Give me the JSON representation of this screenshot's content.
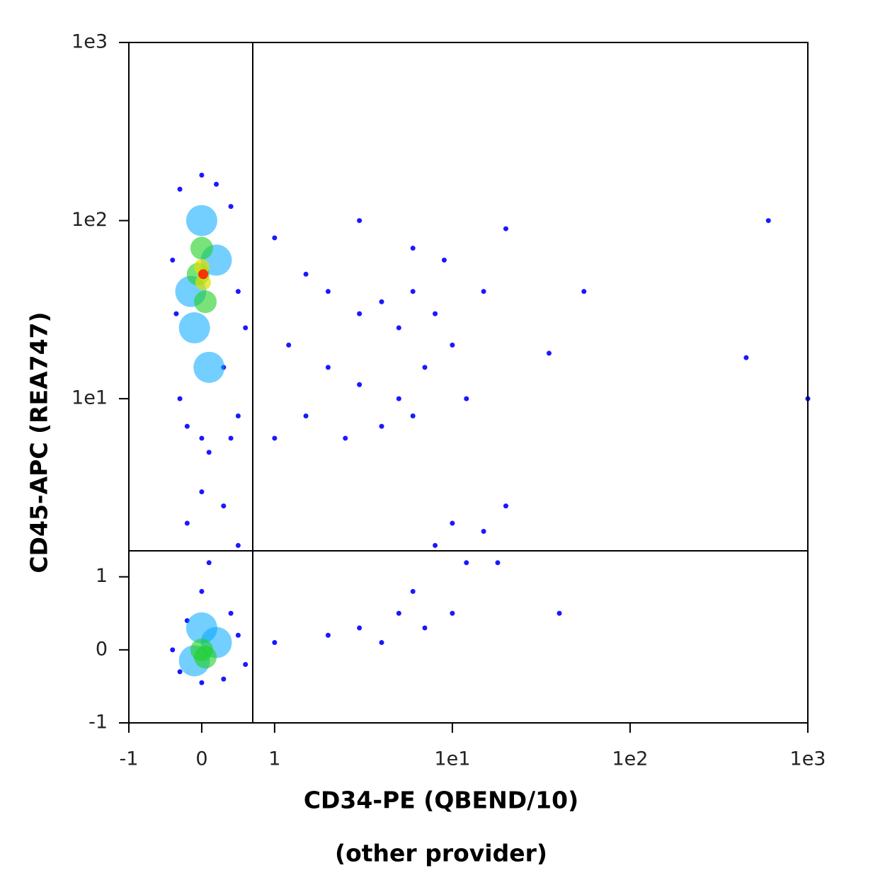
{
  "chart_data": {
    "type": "scatter",
    "xlabel": [
      "CD34-PE (QBEND/10)",
      "(other provider)"
    ],
    "ylabel": "CD45-APC (REA747)",
    "xscale": "biexponential",
    "yscale": "biexponential",
    "xlim": [
      -1,
      1000
    ],
    "ylim": [
      -1,
      1000
    ],
    "xticks": [
      -1,
      0,
      1,
      {
        "value": 10,
        "label": "1e1"
      },
      {
        "value": 100,
        "label": "1e2"
      },
      {
        "value": 1000,
        "label": "1e3"
      }
    ],
    "yticks": [
      -1,
      0,
      1,
      {
        "value": 10,
        "label": "1e1"
      },
      {
        "value": 100,
        "label": "1e2"
      },
      {
        "value": 1000,
        "label": "1e3"
      }
    ],
    "gates": {
      "x": 0.7,
      "y": 1.4
    },
    "series": [
      {
        "color": "#0000ff",
        "x": [
          -0.3,
          0,
          0.2,
          -0.35,
          0.4,
          -0.3,
          0.5,
          0,
          0.3,
          -0.4,
          0.5,
          0.6,
          -0.2,
          0.1,
          0.4,
          1,
          1.5,
          2,
          3,
          4,
          5,
          6,
          8,
          1.2,
          2,
          3,
          5,
          7,
          10,
          1.5,
          2.5,
          4,
          6,
          12,
          15,
          3,
          6,
          20,
          1,
          9,
          0,
          0.3,
          -0.2,
          0.5,
          0.1,
          8,
          10,
          12,
          15,
          6,
          10,
          5,
          3,
          2,
          1,
          4,
          7,
          18,
          20,
          -0.4,
          -0.3,
          0.3,
          0.5,
          0,
          0.4,
          -0.2,
          0.6,
          0,
          600,
          55,
          40,
          450,
          35,
          1000
        ],
        "values": [
          150,
          180,
          160,
          30,
          120,
          10,
          8,
          6,
          15,
          60,
          40,
          25,
          7,
          5,
          6,
          80,
          50,
          40,
          30,
          35,
          25,
          40,
          30,
          20,
          15,
          12,
          10,
          15,
          20,
          8,
          6,
          7,
          8,
          10,
          40,
          100,
          70,
          90,
          6,
          60,
          3,
          2.5,
          2,
          1.5,
          1.2,
          1.5,
          2,
          1.2,
          1.8,
          0.8,
          0.5,
          0.5,
          0.3,
          0.2,
          0.1,
          0.1,
          0.3,
          1.2,
          2.5,
          0,
          -0.3,
          -0.4,
          0.2,
          0.8,
          0.5,
          0.4,
          -0.2,
          -0.45,
          100,
          40,
          0.5,
          17,
          18,
          10
        ]
      },
      {
        "color": "#00a8ff",
        "x": [
          0,
          -0.1,
          0.2,
          0.1,
          -0.15,
          0,
          -0.1,
          0.2
        ],
        "values": [
          100,
          25,
          60,
          15,
          40,
          0.3,
          -0.15,
          0.1
        ]
      },
      {
        "color": "#20d020",
        "x": [
          0,
          0.05,
          -0.05,
          0,
          0.05
        ],
        "values": [
          70,
          35,
          50,
          0,
          -0.1
        ]
      },
      {
        "color": "#e0e000",
        "x": [
          0,
          0.02
        ],
        "values": [
          55,
          45
        ]
      },
      {
        "color": "#ff2000",
        "x": [
          0.02
        ],
        "values": [
          50
        ]
      }
    ]
  }
}
